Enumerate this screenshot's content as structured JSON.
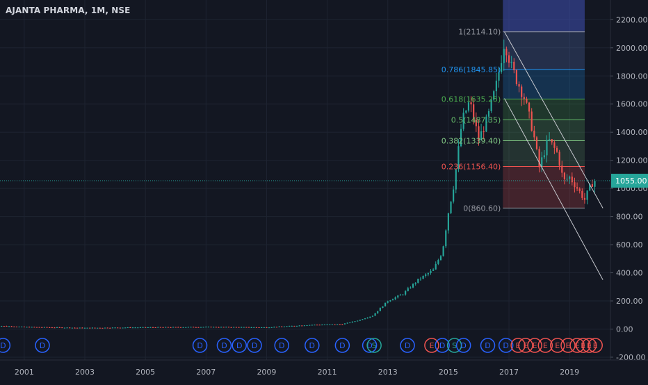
{
  "title": "AJANTA PHARMA, 1M, NSE",
  "colors": {
    "background": "#131722",
    "grid": "#1e2431",
    "up": "#26a69a",
    "down": "#ef5350",
    "text": "#b2b5be",
    "price_line": "#26a69a",
    "event_dividend": "#2962ff",
    "event_split": "#26a69a",
    "event_earnings": "#ef5350"
  },
  "chart_data": {
    "type": "candlestick",
    "symbol": "AJANTA PHARMA",
    "interval": "1M",
    "exchange": "NSE",
    "x_range": [
      2000.2,
      2020.35
    ],
    "y_range": [
      -220,
      2340
    ],
    "x_ticks": [
      "2001",
      "2003",
      "2005",
      "2007",
      "2009",
      "2011",
      "2013",
      "2015",
      "2017",
      "2019"
    ],
    "y_ticks": [
      "2200.00",
      "2000.00",
      "1800.00",
      "1600.00",
      "1400.00",
      "1200.00",
      "1000.00",
      "800.00",
      "600.00",
      "400.00",
      "200.00",
      "0.00",
      "-200.00"
    ],
    "last_price": "1055.00",
    "price_anchors": [
      [
        2000.0,
        25
      ],
      [
        2001.0,
        15
      ],
      [
        2003.0,
        8
      ],
      [
        2005.0,
        12
      ],
      [
        2007.0,
        15
      ],
      [
        2009.0,
        12
      ],
      [
        2010.5,
        30
      ],
      [
        2011.5,
        35
      ],
      [
        2012.0,
        60
      ],
      [
        2012.5,
        95
      ],
      [
        2013.0,
        200
      ],
      [
        2013.5,
        250
      ],
      [
        2014.0,
        350
      ],
      [
        2014.5,
        420
      ],
      [
        2014.8,
        550
      ],
      [
        2015.0,
        830
      ],
      [
        2015.2,
        1050
      ],
      [
        2015.45,
        1480
      ],
      [
        2015.7,
        1620
      ],
      [
        2016.0,
        1350
      ],
      [
        2016.3,
        1500
      ],
      [
        2016.6,
        1750
      ],
      [
        2016.85,
        2050
      ],
      [
        2017.1,
        1850
      ],
      [
        2017.5,
        1650
      ],
      [
        2017.8,
        1400
      ],
      [
        2018.0,
        1150
      ],
      [
        2018.3,
        1350
      ],
      [
        2018.6,
        1250
      ],
      [
        2018.8,
        1050
      ],
      [
        2019.0,
        1080
      ],
      [
        2019.2,
        1020
      ],
      [
        2019.5,
        920
      ],
      [
        2019.65,
        1000
      ],
      [
        2019.8,
        1055
      ]
    ],
    "fibonacci": {
      "range": [
        2016.8,
        2019.5
      ],
      "levels": [
        {
          "label": "1(2114.10)",
          "ratio": "1",
          "value": 2114.1,
          "color": "#9598a1"
        },
        {
          "label": "0.786(1845.85)",
          "ratio": "0.786",
          "value": 1845.85,
          "color": "#2196f3"
        },
        {
          "label": "0.618(1635.25)",
          "ratio": "0.618",
          "value": 1635.25,
          "color": "#4caf50"
        },
        {
          "label": "0.5(1487.35)",
          "ratio": "0.5",
          "value": 1487.35,
          "color": "#66bb6a"
        },
        {
          "label": "0.382(1339.40)",
          "ratio": "0.382",
          "value": 1339.4,
          "color": "#81c784"
        },
        {
          "label": "0.236(1156.40)",
          "ratio": "0.236",
          "value": 1156.4,
          "color": "#ef5350"
        },
        {
          "label": "0(860.60)",
          "ratio": "0",
          "value": 860.6,
          "color": "#9598a1"
        }
      ]
    },
    "trendlines": [
      {
        "from": [
          2016.85,
          2114
        ],
        "to": [
          2020.1,
          860
        ]
      },
      {
        "from": [
          2016.85,
          1640
        ],
        "to": [
          2020.1,
          350
        ]
      }
    ],
    "events": [
      {
        "t": 2000.3,
        "label": "D"
      },
      {
        "t": 2001.6,
        "label": "D"
      },
      {
        "t": 2006.8,
        "label": "D"
      },
      {
        "t": 2007.6,
        "label": "D"
      },
      {
        "t": 2008.1,
        "label": "D"
      },
      {
        "t": 2008.6,
        "label": "D"
      },
      {
        "t": 2009.5,
        "label": "D"
      },
      {
        "t": 2010.5,
        "label": "D"
      },
      {
        "t": 2011.5,
        "label": "D"
      },
      {
        "t": 2012.4,
        "label": "D"
      },
      {
        "t": 2012.55,
        "label": "S"
      },
      {
        "t": 2013.65,
        "label": "D"
      },
      {
        "t": 2014.45,
        "label": "E"
      },
      {
        "t": 2014.8,
        "label": "D"
      },
      {
        "t": 2015.2,
        "label": "S"
      },
      {
        "t": 2015.5,
        "label": "D"
      },
      {
        "t": 2016.3,
        "label": "D"
      },
      {
        "t": 2016.9,
        "label": "D"
      },
      {
        "t": 2017.3,
        "label": "E"
      },
      {
        "t": 2017.55,
        "label": "E"
      },
      {
        "t": 2017.85,
        "label": "E"
      },
      {
        "t": 2018.2,
        "label": "E"
      },
      {
        "t": 2018.6,
        "label": "E"
      },
      {
        "t": 2018.95,
        "label": "E"
      },
      {
        "t": 2019.25,
        "label": "E"
      },
      {
        "t": 2019.45,
        "label": "E"
      },
      {
        "t": 2019.65,
        "label": "E"
      },
      {
        "t": 2019.85,
        "label": "E"
      }
    ]
  }
}
